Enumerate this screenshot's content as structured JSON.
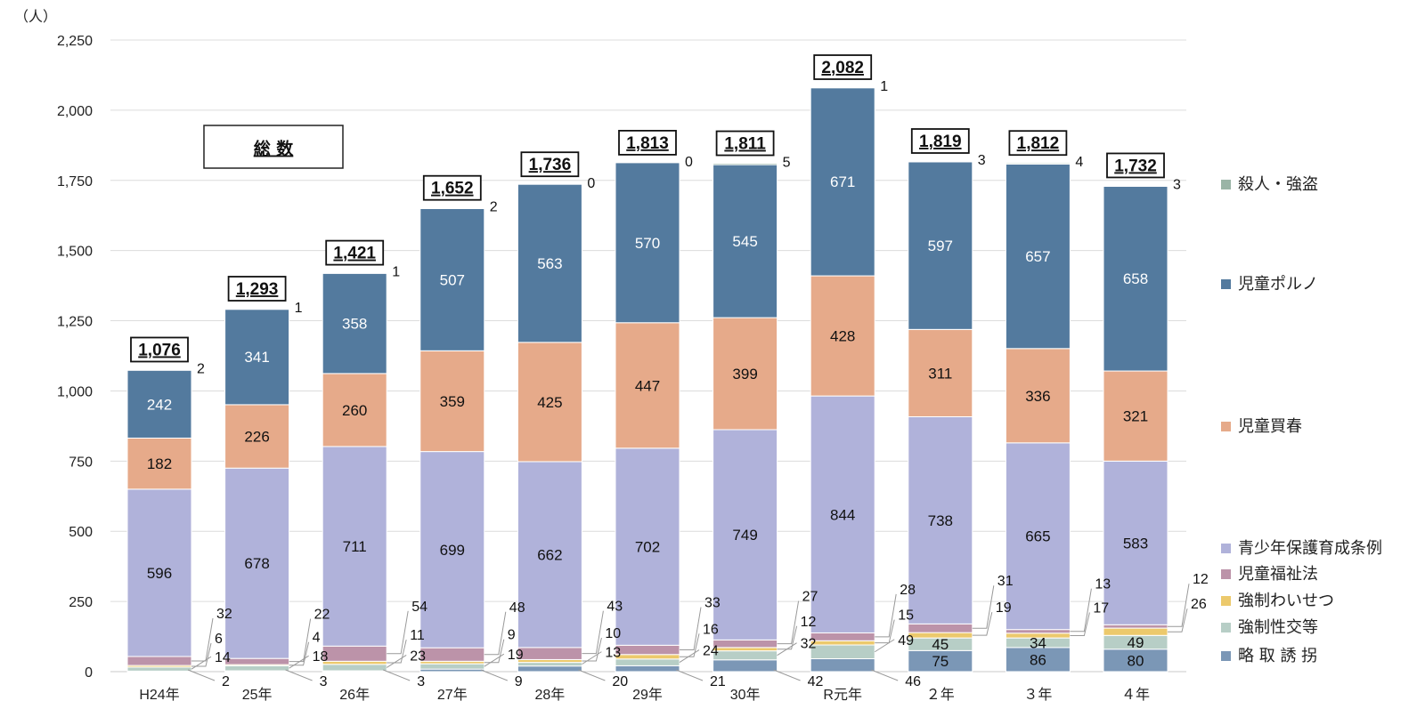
{
  "chart_data": {
    "type": "stacked-bar",
    "title": "総 数",
    "unit": "（人）",
    "categories": [
      "H24年",
      "25年",
      "26年",
      "27年",
      "28年",
      "29年",
      "30年",
      "R元年",
      "２年",
      "３年",
      "４年"
    ],
    "ylim": [
      0,
      2250
    ],
    "yticks": [
      0,
      250,
      500,
      750,
      1000,
      1250,
      1500,
      1750,
      2000,
      2250
    ],
    "ytick_labels": [
      "0",
      "250",
      "500",
      "750",
      "1,000",
      "1,250",
      "1,500",
      "1,750",
      "2,000",
      "2,250"
    ],
    "grid": true,
    "totals": [
      1076,
      1293,
      1421,
      1652,
      1736,
      1813,
      1811,
      2082,
      1819,
      1812,
      1732
    ],
    "total_labels": [
      "1,076",
      "1,293",
      "1,421",
      "1,652",
      "1,736",
      "1,813",
      "1,811",
      "2,082",
      "1,819",
      "1,812",
      "1,732"
    ],
    "series": [
      {
        "name": "略 取 誘 拐",
        "color": "#7b97b6",
        "values": [
          2,
          3,
          3,
          9,
          20,
          21,
          42,
          46,
          75,
          86,
          80
        ]
      },
      {
        "name": "強制性交等",
        "color": "#b7cec6",
        "values": [
          14,
          18,
          23,
          19,
          13,
          24,
          32,
          49,
          45,
          34,
          49
        ]
      },
      {
        "name": "強制わいせつ",
        "color": "#ecc96c",
        "values": [
          6,
          4,
          11,
          9,
          10,
          16,
          12,
          15,
          19,
          17,
          26
        ]
      },
      {
        "name": "児童福祉法",
        "color": "#bc93a9",
        "values": [
          32,
          22,
          54,
          48,
          43,
          33,
          27,
          28,
          31,
          13,
          12
        ]
      },
      {
        "name": "青少年保護育成条例",
        "color": "#b0b2da",
        "values": [
          596,
          678,
          711,
          699,
          662,
          702,
          749,
          844,
          738,
          665,
          583
        ]
      },
      {
        "name": "児童買春",
        "color": "#e6aa8a",
        "values": [
          182,
          226,
          260,
          359,
          425,
          447,
          399,
          428,
          311,
          336,
          321
        ]
      },
      {
        "name": "児童ポルノ",
        "color": "#537a9e",
        "values": [
          242,
          341,
          358,
          507,
          563,
          570,
          545,
          671,
          597,
          657,
          658
        ]
      },
      {
        "name": "殺人・強盗",
        "color": "#9ab4a6",
        "values": [
          2,
          1,
          1,
          2,
          0,
          0,
          5,
          1,
          3,
          4,
          3
        ]
      }
    ],
    "legend": [
      {
        "label": "殺人・強盗",
        "color": "#9ab4a6"
      },
      {
        "label": "児童ポルノ",
        "color": "#537a9e"
      },
      {
        "label": "児童買春",
        "color": "#e6aa8a"
      },
      {
        "label": "青少年保護育成条例",
        "color": "#b0b2da"
      },
      {
        "label": "児童福祉法",
        "color": "#bc93a9"
      },
      {
        "label": "強制わいせつ",
        "color": "#ecc96c"
      },
      {
        "label": "強制性交等",
        "color": "#b7cec6"
      },
      {
        "label": "略 取 誘 拐",
        "color": "#7b97b6"
      }
    ],
    "legend_position": "right"
  }
}
